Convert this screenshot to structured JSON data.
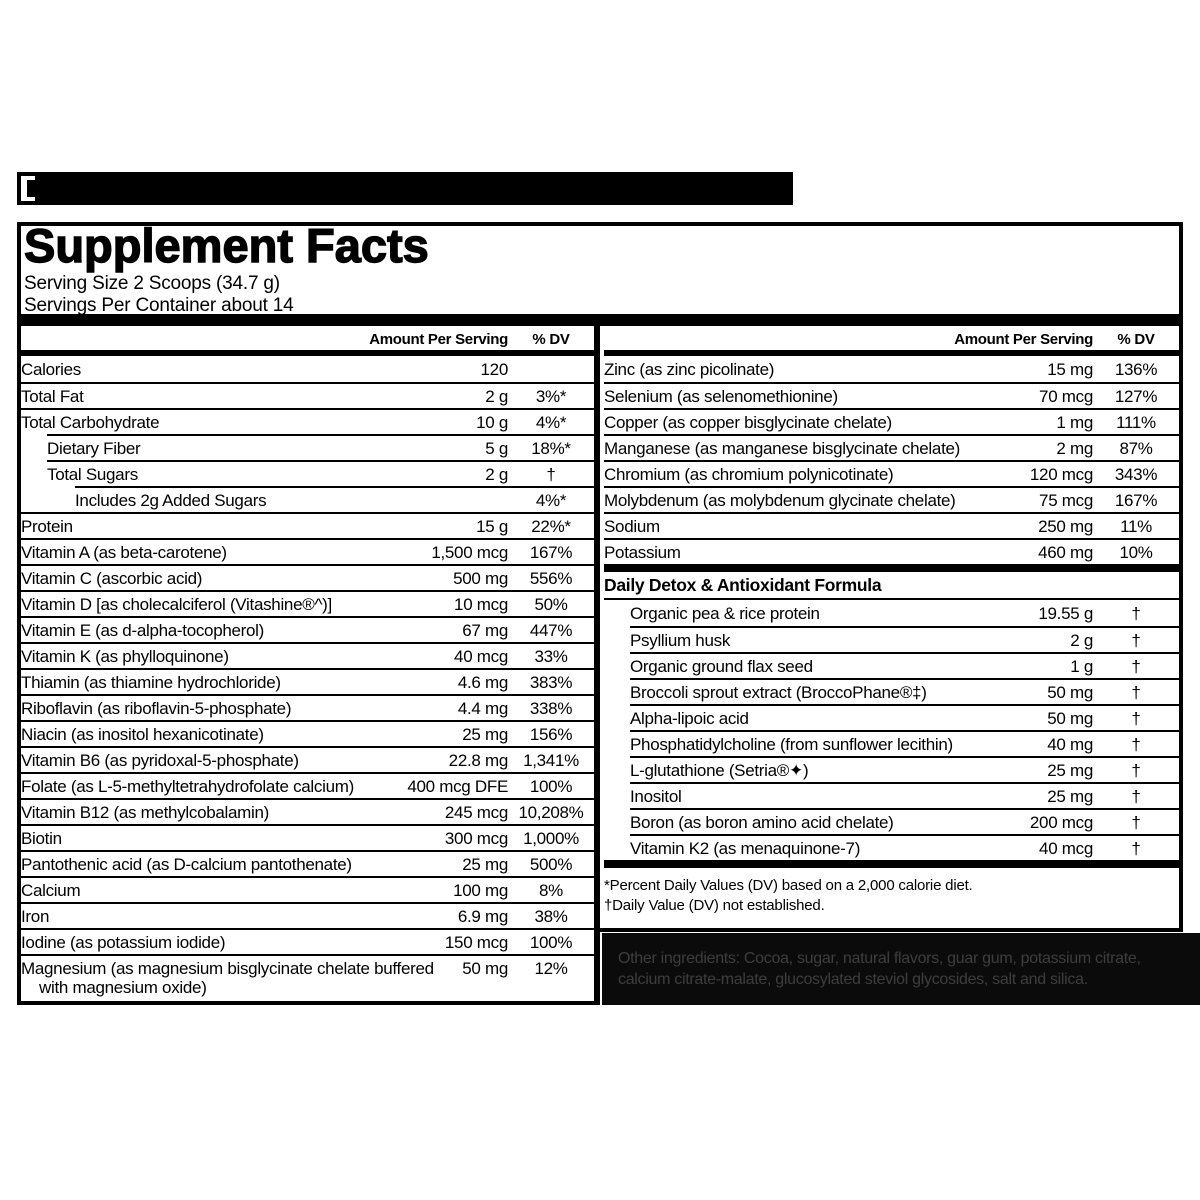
{
  "banner": {
    "fragment_icon": "cropped-letter-fragment"
  },
  "title": "Supplement Facts",
  "serving": {
    "size": "Serving Size 2 Scoops (34.7 g)",
    "per_container": "Servings Per Container about 14"
  },
  "table": {
    "amount_header": "Amount Per Serving",
    "dv_header": "% DV",
    "left_rows": [
      {
        "label": "Calories",
        "amount": "120",
        "dv": "",
        "indent": 0
      },
      {
        "label": "Total Fat",
        "amount": "2 g",
        "dv": "3%*",
        "indent": 0
      },
      {
        "label": "Total Carbohydrate",
        "amount": "10 g",
        "dv": "4%*",
        "indent": 0
      },
      {
        "label": "Dietary Fiber",
        "amount": "5 g",
        "dv": "18%*",
        "indent": 1
      },
      {
        "label": "Total Sugars",
        "amount": "2 g",
        "dv": "†",
        "indent": 1
      },
      {
        "label": "Includes 2g Added Sugars",
        "amount": "",
        "dv": "4%*",
        "indent": 2
      },
      {
        "label": "Protein",
        "amount": "15 g",
        "dv": "22%*",
        "indent": 0
      },
      {
        "label": "Vitamin A (as beta-carotene)",
        "amount": "1,500 mcg",
        "dv": "167%",
        "indent": 0
      },
      {
        "label": "Vitamin C (ascorbic acid)",
        "amount": "500 mg",
        "dv": "556%",
        "indent": 0
      },
      {
        "label": "Vitamin D [as cholecalciferol (Vitashine®^)]",
        "amount": "10 mcg",
        "dv": "50%",
        "indent": 0
      },
      {
        "label": "Vitamin E (as d-alpha-tocopherol)",
        "amount": "67 mg",
        "dv": "447%",
        "indent": 0
      },
      {
        "label": "Vitamin K (as phylloquinone)",
        "amount": "40 mcg",
        "dv": "33%",
        "indent": 0
      },
      {
        "label": "Thiamin (as thiamine hydrochloride)",
        "amount": "4.6 mg",
        "dv": "383%",
        "indent": 0
      },
      {
        "label": "Riboflavin (as riboflavin-5-phosphate)",
        "amount": "4.4 mg",
        "dv": "338%",
        "indent": 0
      },
      {
        "label": "Niacin (as inositol hexanicotinate)",
        "amount": "25 mg",
        "dv": "156%",
        "indent": 0
      },
      {
        "label": "Vitamin B6 (as pyridoxal-5-phosphate)",
        "amount": "22.8 mg",
        "dv": "1,341%",
        "indent": 0
      },
      {
        "label": "Folate (as L-5-methyltetrahydrofolate calcium)",
        "amount": "400 mcg DFE",
        "dv": "100%",
        "indent": 0
      },
      {
        "label": "Vitamin B12 (as methylcobalamin)",
        "amount": "245 mcg",
        "dv": "10,208%",
        "indent": 0
      },
      {
        "label": "Biotin",
        "amount": "300 mcg",
        "dv": "1,000%",
        "indent": 0
      },
      {
        "label": "Pantothenic acid (as D-calcium pantothenate)",
        "amount": "25 mg",
        "dv": "500%",
        "indent": 0
      },
      {
        "label": "Calcium",
        "amount": "100 mg",
        "dv": "8%",
        "indent": 0
      },
      {
        "label": "Iron",
        "amount": "6.9 mg",
        "dv": "38%",
        "indent": 0
      },
      {
        "label": "Iodine (as potassium iodide)",
        "amount": "150 mcg",
        "dv": "100%",
        "indent": 0
      },
      {
        "label": "Magnesium (as magnesium bisglycinate chelate buffered with magnesium oxide)",
        "amount": "50 mg",
        "dv": "12%",
        "indent": 0,
        "tall": true
      }
    ],
    "right_rows": [
      {
        "label": "Zinc (as zinc picolinate)",
        "amount": "15 mg",
        "dv": "136%",
        "indent": 0
      },
      {
        "label": "Selenium (as selenomethionine)",
        "amount": "70 mcg",
        "dv": "127%",
        "indent": 0
      },
      {
        "label": "Copper (as copper bisglycinate chelate)",
        "amount": "1 mg",
        "dv": "111%",
        "indent": 0
      },
      {
        "label": "Manganese (as manganese bisglycinate chelate)",
        "amount": "2 mg",
        "dv": "87%",
        "indent": 0
      },
      {
        "label": "Chromium (as chromium polynicotinate)",
        "amount": "120 mcg",
        "dv": "343%",
        "indent": 0
      },
      {
        "label": "Molybdenum (as molybdenum glycinate chelate)",
        "amount": "75 mcg",
        "dv": "167%",
        "indent": 0
      },
      {
        "label": "Sodium",
        "amount": "250 mg",
        "dv": "11%",
        "indent": 0
      },
      {
        "label": "Potassium",
        "amount": "460 mg",
        "dv": "10%",
        "indent": 0
      }
    ],
    "detox_section_title": "Daily Detox & Antioxidant Formula",
    "detox_rows": [
      {
        "label": "Organic pea & rice protein",
        "amount": "19.55 g",
        "dv": "†",
        "indent": 1
      },
      {
        "label": "Psyllium husk",
        "amount": "2 g",
        "dv": "†",
        "indent": 1
      },
      {
        "label": "Organic ground flax seed",
        "amount": "1 g",
        "dv": "†",
        "indent": 1
      },
      {
        "label": "Broccoli sprout extract (BroccoPhane®‡)",
        "amount": "50 mg",
        "dv": "†",
        "indent": 1
      },
      {
        "label": "Alpha-lipoic acid",
        "amount": "50 mg",
        "dv": "†",
        "indent": 1
      },
      {
        "label": "Phosphatidylcholine (from sunflower lecithin)",
        "amount": "40 mg",
        "dv": "†",
        "indent": 1
      },
      {
        "label": "L-glutathione (Setria®✦)",
        "amount": "25 mg",
        "dv": "†",
        "indent": 1
      },
      {
        "label": "Inositol",
        "amount": "25 mg",
        "dv": "†",
        "indent": 1
      },
      {
        "label": "Boron (as boron amino acid chelate)",
        "amount": "200 mcg",
        "dv": "†",
        "indent": 1
      },
      {
        "label": "Vitamin K2 (as menaquinone-7)",
        "amount": "40 mcg",
        "dv": "†",
        "indent": 1
      }
    ]
  },
  "footnotes": [
    "*Percent Daily Values (DV) based on a 2,000 calorie diet.",
    "†Daily Value (DV) not established."
  ],
  "other_ingredients": "Other ingredients: Cocoa, sugar, natural flavors, guar gum, potassium citrate, calcium citrate-malate, glucosylated steviol glycosides, salt and silica.",
  "colors": {
    "ink": "#000000",
    "ingredients_bg": "#0b0b0b",
    "ingredients_text": "#3e3e3e"
  }
}
